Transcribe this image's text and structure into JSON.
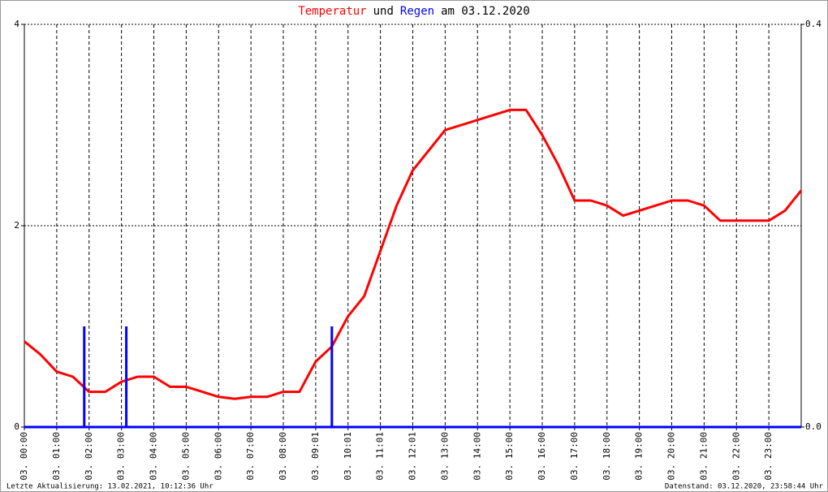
{
  "chart_data": {
    "type": "line",
    "title": [
      {
        "text": "Temperatur",
        "color": "#ff0000"
      },
      {
        "text": "und",
        "color": "#000000"
      },
      {
        "text": "Regen",
        "color": "#0000ff"
      },
      {
        "text": "am 03.12.2020",
        "color": "#000000"
      }
    ],
    "xlim": [
      0,
      24
    ],
    "xticks": [
      {
        "value": 0,
        "label": "03. 00:00"
      },
      {
        "value": 1,
        "label": "03. 01:00"
      },
      {
        "value": 2,
        "label": "03. 02:00"
      },
      {
        "value": 3,
        "label": "03. 03:00"
      },
      {
        "value": 4,
        "label": "03. 04:00"
      },
      {
        "value": 5,
        "label": "03. 05:00"
      },
      {
        "value": 6,
        "label": "03. 06:00"
      },
      {
        "value": 7,
        "label": "03. 07:00"
      },
      {
        "value": 8,
        "label": "03. 08:00"
      },
      {
        "value": 9,
        "label": "03. 09:01"
      },
      {
        "value": 10,
        "label": "03. 10:01"
      },
      {
        "value": 11,
        "label": "03. 11:01"
      },
      {
        "value": 12,
        "label": "03. 12:01"
      },
      {
        "value": 13,
        "label": "03. 13:00"
      },
      {
        "value": 14,
        "label": "03. 14:00"
      },
      {
        "value": 15,
        "label": "03. 15:00"
      },
      {
        "value": 16,
        "label": "03. 16:00"
      },
      {
        "value": 17,
        "label": "03. 17:00"
      },
      {
        "value": 18,
        "label": "03. 18:00"
      },
      {
        "value": 19,
        "label": "03. 19:00"
      },
      {
        "value": 20,
        "label": "03. 20:00"
      },
      {
        "value": 21,
        "label": "03. 21:00"
      },
      {
        "value": 22,
        "label": "03. 22:00"
      },
      {
        "value": 23,
        "label": "03. 23:00"
      }
    ],
    "ylim": [
      0,
      4
    ],
    "yticks": [
      0,
      2,
      4
    ],
    "y2lim": [
      0,
      0.4
    ],
    "y2ticks": [
      {
        "value": 0,
        "label": "0.0"
      },
      0.4
    ],
    "grid": true,
    "series": [
      {
        "name": "Temperatur",
        "color": "#ff0000",
        "type": "line",
        "x": [
          0,
          0.5,
          1,
          1.5,
          2,
          2.5,
          3,
          3.5,
          4,
          4.5,
          5,
          5.5,
          6,
          6.5,
          7,
          7.5,
          8,
          8.5,
          9,
          9.5,
          10,
          10.5,
          11,
          11.5,
          12,
          12.5,
          13,
          13.5,
          14,
          14.5,
          15,
          15.5,
          16,
          16.5,
          17,
          17.5,
          18,
          18.5,
          19,
          19.5,
          20,
          20.5,
          21,
          21.5,
          22,
          22.5,
          23,
          23.5,
          24
        ],
        "values": [
          0.85,
          0.72,
          0.55,
          0.5,
          0.35,
          0.35,
          0.45,
          0.5,
          0.5,
          0.4,
          0.4,
          0.35,
          0.3,
          0.28,
          0.3,
          0.3,
          0.35,
          0.35,
          0.65,
          0.8,
          1.1,
          1.3,
          1.75,
          2.2,
          2.55,
          2.75,
          2.95,
          3.0,
          3.05,
          3.1,
          3.15,
          3.15,
          2.9,
          2.6,
          2.25,
          2.25,
          2.2,
          2.1,
          2.15,
          2.2,
          2.25,
          2.25,
          2.2,
          2.05,
          2.05,
          2.05,
          2.05,
          2.15,
          2.35
        ]
      },
      {
        "name": "Regen",
        "color": "#0000ff",
        "type": "bar",
        "axis": "y2",
        "x": [
          1.85,
          3.15,
          9.5
        ],
        "values": [
          0.1,
          0.1,
          0.1
        ]
      }
    ],
    "footer_left": "Letzte Aktualisierung: 13.02.2021, 10:12:36 Uhr",
    "footer_right": "Datenstand: 03.12.2020, 23:58:44 Uhr"
  }
}
